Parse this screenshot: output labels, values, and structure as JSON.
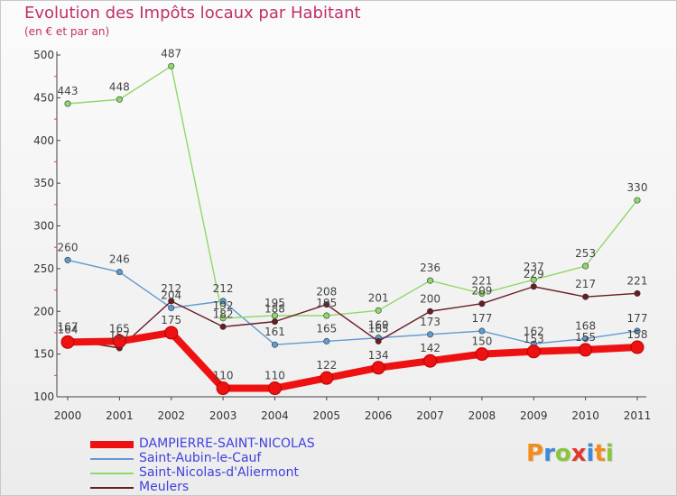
{
  "chart_data": {
    "type": "line",
    "title": "Evolution des Impôts locaux par Habitant",
    "subtitle": "(en € et par an)",
    "x": [
      "2000",
      "2001",
      "2002",
      "2003",
      "2004",
      "2005",
      "2006",
      "2007",
      "2008",
      "2009",
      "2010",
      "2011"
    ],
    "ylim": [
      100,
      500
    ],
    "yticks": [
      100,
      150,
      200,
      250,
      300,
      350,
      400,
      450,
      500
    ],
    "series": [
      {
        "name": "Saint-Aubin-le-Cauf",
        "color": "#5f9bd0",
        "values": [
          260,
          246,
          204,
          212,
          161,
          165,
          169,
          173,
          177,
          162,
          168,
          177
        ]
      },
      {
        "name": "Saint-Nicolas-d'Aliermont",
        "color": "#8fd86a",
        "values": [
          443,
          448,
          487,
          192,
          195,
          195,
          201,
          236,
          221,
          237,
          253,
          330
        ]
      },
      {
        "name": "Meulers",
        "color": "#6a1c24",
        "values": [
          167,
          157,
          212,
          182,
          188,
          208,
          165,
          200,
          209,
          229,
          217,
          221
        ]
      },
      {
        "name": "DAMPIERRE-SAINT-NICOLAS",
        "color": "#ee1111",
        "values": [
          164,
          165,
          175,
          110,
          110,
          122,
          134,
          142,
          150,
          153,
          155,
          158
        ]
      }
    ]
  },
  "legend": {
    "items": [
      {
        "label": "DAMPIERRE-SAINT-NICOLAS",
        "color": "#ee1111"
      },
      {
        "label": "Saint-Aubin-le-Cauf",
        "color": "#5f9bd0"
      },
      {
        "label": "Saint-Nicolas-d'Aliermont",
        "color": "#8fd86a"
      },
      {
        "label": "Meulers",
        "color": "#6a1c24"
      }
    ],
    "text_color": "#4040e0"
  },
  "logo": {
    "text": "Proxiti"
  }
}
